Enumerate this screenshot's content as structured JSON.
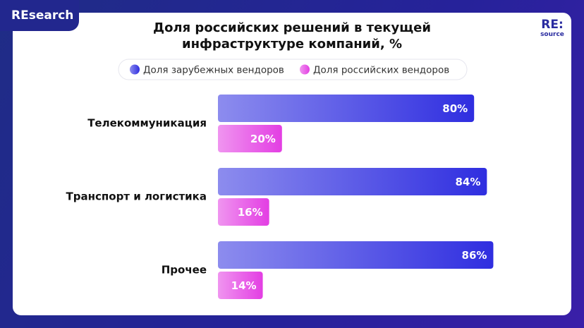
{
  "brand": {
    "tab": "REsearch",
    "logo_main": "RE:",
    "logo_sub": "source"
  },
  "chart_data": {
    "type": "barh",
    "title": "Доля российских решений в текущей инфраструктуре компаний, %",
    "categories": [
      "Телекоммуникация",
      "Транспорт и логистика",
      "Прочее"
    ],
    "series": [
      {
        "name": "Доля зарубежных вендоров",
        "color": "#2f2ee0",
        "values": [
          80,
          84,
          86
        ],
        "value_labels": [
          "80%",
          "84%",
          "86%"
        ]
      },
      {
        "name": "Доля российских вендоров",
        "color": "#e33ee3",
        "values": [
          20,
          16,
          14
        ],
        "value_labels": [
          "20%",
          "16%",
          "14%"
        ]
      }
    ]
  }
}
